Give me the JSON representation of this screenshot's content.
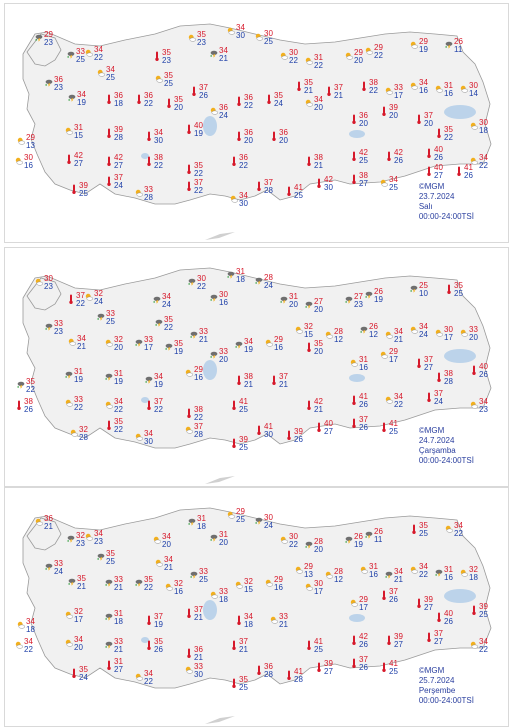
{
  "colors": {
    "max": "#d6182a",
    "min": "#1e3fa8",
    "land": "#f1f1f1",
    "water": "#bcd3ea",
    "border": "#9a9a9a"
  },
  "panels": [
    {
      "info": {
        "copyright": "©MGM",
        "date": "23.7.2024",
        "day": "Salı",
        "period": "00:00-24:00TSİ"
      },
      "cities": [
        {
          "hi": "29",
          "lo": "23",
          "icon": "storm"
        },
        {
          "hi": "33",
          "lo": "25",
          "icon": "storm"
        },
        {
          "hi": "36",
          "lo": "23",
          "icon": "storm"
        },
        {
          "hi": "34",
          "lo": "22",
          "icon": "partly-sunny"
        },
        {
          "hi": "34",
          "lo": "25",
          "icon": "partly-sunny"
        },
        {
          "hi": "35",
          "lo": "23",
          "icon": "sunny"
        },
        {
          "hi": "35",
          "lo": "25",
          "icon": "partly-sunny"
        },
        {
          "hi": "37",
          "lo": "26",
          "icon": "sunny"
        },
        {
          "hi": "35",
          "lo": "23",
          "icon": "partly-sunny"
        },
        {
          "hi": "34",
          "lo": "30",
          "icon": "partly-sunny"
        },
        {
          "hi": "34",
          "lo": "21",
          "icon": "storm"
        },
        {
          "hi": "30",
          "lo": "25",
          "icon": "partly-sunny"
        },
        {
          "hi": "30",
          "lo": "22",
          "icon": "partly-sunny"
        },
        {
          "hi": "31",
          "lo": "22",
          "icon": "partly-sunny"
        },
        {
          "hi": "29",
          "lo": "20",
          "icon": "partly-sunny"
        },
        {
          "hi": "29",
          "lo": "22",
          "icon": "partly-sunny"
        },
        {
          "hi": "29",
          "lo": "19",
          "icon": "partly-sunny"
        },
        {
          "hi": "26",
          "lo": "11",
          "icon": "storm"
        },
        {
          "hi": "34",
          "lo": "19",
          "icon": "storm"
        },
        {
          "hi": "36",
          "lo": "18",
          "icon": "sunny"
        },
        {
          "hi": "36",
          "lo": "22",
          "icon": "sunny"
        },
        {
          "hi": "35",
          "lo": "20",
          "icon": "sunny"
        },
        {
          "hi": "36",
          "lo": "24",
          "icon": "partly-sunny"
        },
        {
          "hi": "36",
          "lo": "22",
          "icon": "sunny"
        },
        {
          "hi": "35",
          "lo": "24",
          "icon": "sunny"
        },
        {
          "hi": "35",
          "lo": "21",
          "icon": "sunny"
        },
        {
          "hi": "37",
          "lo": "21",
          "icon": "sunny"
        },
        {
          "hi": "38",
          "lo": "22",
          "icon": "sunny"
        },
        {
          "hi": "33",
          "lo": "17",
          "icon": "partly-sunny"
        },
        {
          "hi": "34",
          "lo": "16",
          "icon": "partly-sunny"
        },
        {
          "hi": "31",
          "lo": "16",
          "icon": "partly-sunny"
        },
        {
          "hi": "30",
          "lo": "14",
          "icon": "partly-sunny"
        },
        {
          "hi": "29",
          "lo": "13",
          "icon": "partly-sunny"
        },
        {
          "hi": "31",
          "lo": "15",
          "icon": "partly-sunny"
        },
        {
          "hi": "39",
          "lo": "28",
          "icon": "sunny"
        },
        {
          "hi": "34",
          "lo": "30",
          "icon": "sunny"
        },
        {
          "hi": "40",
          "lo": "19",
          "icon": "sunny"
        },
        {
          "hi": "36",
          "lo": "20",
          "icon": "sunny"
        },
        {
          "hi": "36",
          "lo": "20",
          "icon": "sunny"
        },
        {
          "hi": "34",
          "lo": "20",
          "icon": "partly-sunny"
        },
        {
          "hi": "36",
          "lo": "20",
          "icon": "sunny"
        },
        {
          "hi": "39",
          "lo": "20",
          "icon": "sunny"
        },
        {
          "hi": "37",
          "lo": "20",
          "icon": "sunny"
        },
        {
          "hi": "35",
          "lo": "22",
          "icon": "sunny"
        },
        {
          "hi": "30",
          "lo": "18",
          "icon": "partly-sunny"
        },
        {
          "hi": "30",
          "lo": "16",
          "icon": "partly-sunny"
        },
        {
          "hi": "42",
          "lo": "27",
          "icon": "sunny"
        },
        {
          "hi": "42",
          "lo": "27",
          "icon": "sunny"
        },
        {
          "hi": "38",
          "lo": "22",
          "icon": "sunny"
        },
        {
          "hi": "35",
          "lo": "22",
          "icon": "sunny"
        },
        {
          "hi": "36",
          "lo": "22",
          "icon": "sunny"
        },
        {
          "hi": "38",
          "lo": "21",
          "icon": "sunny"
        },
        {
          "hi": "42",
          "lo": "25",
          "icon": "sunny"
        },
        {
          "hi": "42",
          "lo": "26",
          "icon": "sunny"
        },
        {
          "hi": "40",
          "lo": "26",
          "icon": "sunny"
        },
        {
          "hi": "34",
          "lo": "22",
          "icon": "partly-sunny"
        },
        {
          "hi": "39",
          "lo": "25",
          "icon": "sunny"
        },
        {
          "hi": "37",
          "lo": "24",
          "icon": "sunny"
        },
        {
          "hi": "33",
          "lo": "28",
          "icon": "partly-sunny"
        },
        {
          "hi": "37",
          "lo": "22",
          "icon": "sunny"
        },
        {
          "hi": "34",
          "lo": "30",
          "icon": "partly-sunny"
        },
        {
          "hi": "37",
          "lo": "28",
          "icon": "sunny"
        },
        {
          "hi": "41",
          "lo": "25",
          "icon": "sunny"
        },
        {
          "hi": "42",
          "lo": "30",
          "icon": "sunny"
        },
        {
          "hi": "38",
          "lo": "27",
          "icon": "sunny"
        },
        {
          "hi": "34",
          "lo": "25",
          "icon": "partly-sunny"
        },
        {
          "hi": "40",
          "lo": "27",
          "icon": "sunny"
        },
        {
          "hi": "41",
          "lo": "26",
          "icon": "sunny"
        }
      ]
    },
    {
      "info": {
        "copyright": "©MGM",
        "date": "24.7.2024",
        "day": "Çarşamba",
        "period": "00:00-24:00TSİ"
      },
      "cities": [
        {
          "hi": "30",
          "lo": "23",
          "icon": "partly-sunny"
        },
        {
          "hi": "37",
          "lo": "22",
          "icon": "sunny"
        },
        {
          "hi": "33",
          "lo": "23",
          "icon": "storm"
        },
        {
          "hi": "32",
          "lo": "24",
          "icon": "partly-sunny"
        },
        {
          "hi": "33",
          "lo": "25",
          "icon": "storm"
        },
        {
          "hi": "34",
          "lo": "24",
          "icon": "storm"
        },
        {
          "hi": "35",
          "lo": "22",
          "icon": "storm"
        },
        {
          "hi": "33",
          "lo": "21",
          "icon": "storm"
        },
        {
          "hi": "30",
          "lo": "22",
          "icon": "storm"
        },
        {
          "hi": "31",
          "lo": "18",
          "icon": "storm"
        },
        {
          "hi": "30",
          "lo": "16",
          "icon": "storm"
        },
        {
          "hi": "28",
          "lo": "24",
          "icon": "storm"
        },
        {
          "hi": "31",
          "lo": "20",
          "icon": "storm"
        },
        {
          "hi": "27",
          "lo": "20",
          "icon": "storm"
        },
        {
          "hi": "27",
          "lo": "23",
          "icon": "storm"
        },
        {
          "hi": "26",
          "lo": "19",
          "icon": "storm"
        },
        {
          "hi": "25",
          "lo": "10",
          "icon": "storm"
        },
        {
          "hi": "35",
          "lo": "25",
          "icon": "sunny"
        },
        {
          "hi": "34",
          "lo": "21",
          "icon": "partly-sunny"
        },
        {
          "hi": "32",
          "lo": "20",
          "icon": "partly-sunny"
        },
        {
          "hi": "33",
          "lo": "17",
          "icon": "storm"
        },
        {
          "hi": "35",
          "lo": "19",
          "icon": "storm"
        },
        {
          "hi": "33",
          "lo": "20",
          "icon": "storm"
        },
        {
          "hi": "34",
          "lo": "19",
          "icon": "storm"
        },
        {
          "hi": "29",
          "lo": "16",
          "icon": "partly-sunny"
        },
        {
          "hi": "32",
          "lo": "15",
          "icon": "partly-sunny"
        },
        {
          "hi": "28",
          "lo": "12",
          "icon": "partly-sunny"
        },
        {
          "hi": "26",
          "lo": "12",
          "icon": "storm"
        },
        {
          "hi": "34",
          "lo": "21",
          "icon": "partly-sunny"
        },
        {
          "hi": "34",
          "lo": "24",
          "icon": "partly-sunny"
        },
        {
          "hi": "30",
          "lo": "17",
          "icon": "partly-sunny"
        },
        {
          "hi": "33",
          "lo": "20",
          "icon": "partly-sunny"
        },
        {
          "hi": "35",
          "lo": "22",
          "icon": "storm"
        },
        {
          "hi": "31",
          "lo": "19",
          "icon": "storm"
        },
        {
          "hi": "31",
          "lo": "19",
          "icon": "storm"
        },
        {
          "hi": "34",
          "lo": "19",
          "icon": "storm"
        },
        {
          "hi": "29",
          "lo": "16",
          "icon": "partly-sunny"
        },
        {
          "hi": "38",
          "lo": "21",
          "icon": "sunny"
        },
        {
          "hi": "37",
          "lo": "21",
          "icon": "sunny"
        },
        {
          "hi": "35",
          "lo": "20",
          "icon": "sunny"
        },
        {
          "hi": "31",
          "lo": "16",
          "icon": "partly-sunny"
        },
        {
          "hi": "29",
          "lo": "17",
          "icon": "partly-sunny"
        },
        {
          "hi": "37",
          "lo": "27",
          "icon": "sunny"
        },
        {
          "hi": "38",
          "lo": "28",
          "icon": "sunny"
        },
        {
          "hi": "40",
          "lo": "26",
          "icon": "sunny"
        },
        {
          "hi": "38",
          "lo": "26",
          "icon": "sunny"
        },
        {
          "hi": "33",
          "lo": "22",
          "icon": "partly-sunny"
        },
        {
          "hi": "34",
          "lo": "22",
          "icon": "partly-sunny"
        },
        {
          "hi": "37",
          "lo": "22",
          "icon": "sunny"
        },
        {
          "hi": "38",
          "lo": "22",
          "icon": "sunny"
        },
        {
          "hi": "41",
          "lo": "25",
          "icon": "sunny"
        },
        {
          "hi": "42",
          "lo": "21",
          "icon": "sunny"
        },
        {
          "hi": "41",
          "lo": "26",
          "icon": "sunny"
        },
        {
          "hi": "34",
          "lo": "22",
          "icon": "partly-sunny"
        },
        {
          "hi": "37",
          "lo": "24",
          "icon": "sunny"
        },
        {
          "hi": "34",
          "lo": "23",
          "icon": "partly-sunny"
        },
        {
          "hi": "32",
          "lo": "28",
          "icon": "partly-sunny"
        },
        {
          "hi": "35",
          "lo": "22",
          "icon": "sunny"
        },
        {
          "hi": "34",
          "lo": "30",
          "icon": "partly-sunny"
        },
        {
          "hi": "37",
          "lo": "28",
          "icon": "partly-sunny"
        },
        {
          "hi": "39",
          "lo": "25",
          "icon": "sunny"
        },
        {
          "hi": "41",
          "lo": "30",
          "icon": "sunny"
        },
        {
          "hi": "39",
          "lo": "26",
          "icon": "sunny"
        },
        {
          "hi": "40",
          "lo": "27",
          "icon": "sunny"
        },
        {
          "hi": "37",
          "lo": "26",
          "icon": "sunny"
        },
        {
          "hi": "41",
          "lo": "25",
          "icon": "sunny"
        }
      ]
    },
    {
      "info": {
        "copyright": "©MGM",
        "date": "25.7.2024",
        "day": "Perşembe",
        "period": "00:00-24:00TSİ"
      },
      "cities": [
        {
          "hi": "36",
          "lo": "21",
          "icon": "partly-sunny"
        },
        {
          "hi": "32",
          "lo": "23",
          "icon": "storm"
        },
        {
          "hi": "33",
          "lo": "24",
          "icon": "storm"
        },
        {
          "hi": "34",
          "lo": "23",
          "icon": "partly-sunny"
        },
        {
          "hi": "35",
          "lo": "25",
          "icon": "storm"
        },
        {
          "hi": "34",
          "lo": "20",
          "icon": "partly-sunny"
        },
        {
          "hi": "34",
          "lo": "21",
          "icon": "partly-sunny"
        },
        {
          "hi": "33",
          "lo": "25",
          "icon": "storm"
        },
        {
          "hi": "31",
          "lo": "18",
          "icon": "storm"
        },
        {
          "hi": "29",
          "lo": "25",
          "icon": "partly-sunny"
        },
        {
          "hi": "31",
          "lo": "20",
          "icon": "storm"
        },
        {
          "hi": "30",
          "lo": "24",
          "icon": "storm"
        },
        {
          "hi": "30",
          "lo": "22",
          "icon": "partly-sunny"
        },
        {
          "hi": "28",
          "lo": "20",
          "icon": "storm"
        },
        {
          "hi": "26",
          "lo": "19",
          "icon": "storm"
        },
        {
          "hi": "26",
          "lo": "11",
          "icon": "storm"
        },
        {
          "hi": "35",
          "lo": "25",
          "icon": "sunny"
        },
        {
          "hi": "34",
          "lo": "22",
          "icon": "partly-sunny"
        },
        {
          "hi": "35",
          "lo": "21",
          "icon": "storm"
        },
        {
          "hi": "33",
          "lo": "21",
          "icon": "storm"
        },
        {
          "hi": "35",
          "lo": "22",
          "icon": "storm"
        },
        {
          "hi": "32",
          "lo": "16",
          "icon": "partly-sunny"
        },
        {
          "hi": "33",
          "lo": "18",
          "icon": "partly-sunny"
        },
        {
          "hi": "32",
          "lo": "15",
          "icon": "partly-sunny"
        },
        {
          "hi": "29",
          "lo": "16",
          "icon": "partly-sunny"
        },
        {
          "hi": "29",
          "lo": "13",
          "icon": "partly-sunny"
        },
        {
          "hi": "28",
          "lo": "12",
          "icon": "partly-sunny"
        },
        {
          "hi": "31",
          "lo": "16",
          "icon": "partly-sunny"
        },
        {
          "hi": "34",
          "lo": "21",
          "icon": "storm"
        },
        {
          "hi": "34",
          "lo": "22",
          "icon": "partly-sunny"
        },
        {
          "hi": "31",
          "lo": "16",
          "icon": "storm"
        },
        {
          "hi": "32",
          "lo": "18",
          "icon": "partly-sunny"
        },
        {
          "hi": "34",
          "lo": "18",
          "icon": "partly-sunny"
        },
        {
          "hi": "32",
          "lo": "17",
          "icon": "partly-sunny"
        },
        {
          "hi": "31",
          "lo": "18",
          "icon": "storm"
        },
        {
          "hi": "37",
          "lo": "19",
          "icon": "sunny"
        },
        {
          "hi": "37",
          "lo": "21",
          "icon": "sunny"
        },
        {
          "hi": "34",
          "lo": "18",
          "icon": "sunny"
        },
        {
          "hi": "33",
          "lo": "21",
          "icon": "partly-sunny"
        },
        {
          "hi": "30",
          "lo": "17",
          "icon": "partly-sunny"
        },
        {
          "hi": "29",
          "lo": "17",
          "icon": "partly-sunny"
        },
        {
          "hi": "37",
          "lo": "26",
          "icon": "sunny"
        },
        {
          "hi": "39",
          "lo": "27",
          "icon": "sunny"
        },
        {
          "hi": "40",
          "lo": "26",
          "icon": "sunny"
        },
        {
          "hi": "39",
          "lo": "25",
          "icon": "sunny"
        },
        {
          "hi": "34",
          "lo": "22",
          "icon": "partly-sunny"
        },
        {
          "hi": "34",
          "lo": "20",
          "icon": "partly-sunny"
        },
        {
          "hi": "33",
          "lo": "21",
          "icon": "storm"
        },
        {
          "hi": "35",
          "lo": "26",
          "icon": "sunny"
        },
        {
          "hi": "36",
          "lo": "21",
          "icon": "sunny"
        },
        {
          "hi": "37",
          "lo": "21",
          "icon": "sunny"
        },
        {
          "hi": "41",
          "lo": "25",
          "icon": "sunny"
        },
        {
          "hi": "42",
          "lo": "26",
          "icon": "sunny"
        },
        {
          "hi": "39",
          "lo": "27",
          "icon": "sunny"
        },
        {
          "hi": "37",
          "lo": "27",
          "icon": "sunny"
        },
        {
          "hi": "34",
          "lo": "22",
          "icon": "partly-sunny"
        },
        {
          "hi": "35",
          "lo": "24",
          "icon": "sunny"
        },
        {
          "hi": "31",
          "lo": "27",
          "icon": "sunny"
        },
        {
          "hi": "34",
          "lo": "22",
          "icon": "partly-sunny"
        },
        {
          "hi": "33",
          "lo": "30",
          "icon": "partly-sunny"
        },
        {
          "hi": "35",
          "lo": "25",
          "icon": "sunny"
        },
        {
          "hi": "36",
          "lo": "28",
          "icon": "sunny"
        },
        {
          "hi": "41",
          "lo": "28",
          "icon": "sunny"
        },
        {
          "hi": "39",
          "lo": "27",
          "icon": "sunny"
        },
        {
          "hi": "37",
          "lo": "26",
          "icon": "sunny"
        },
        {
          "hi": "41",
          "lo": "25",
          "icon": "sunny"
        }
      ]
    }
  ]
}
